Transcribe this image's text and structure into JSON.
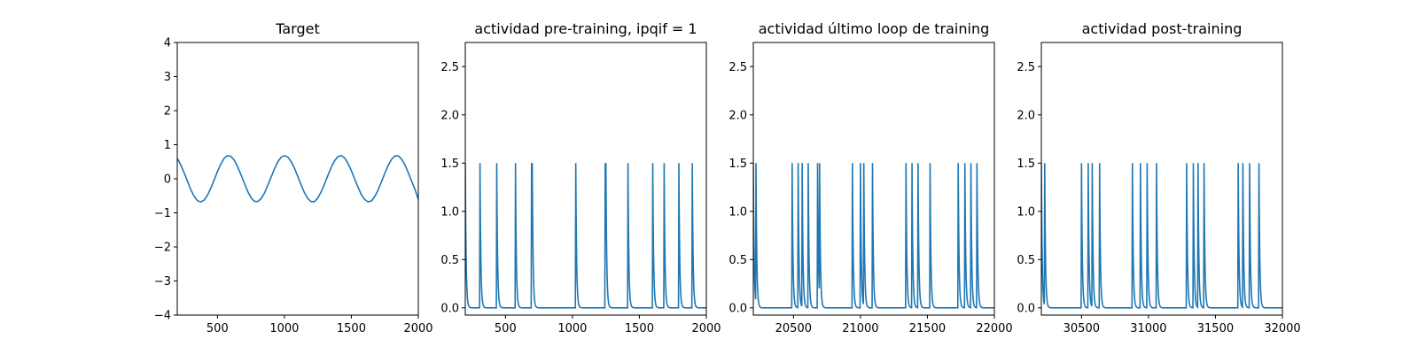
{
  "chart_data": [
    {
      "type": "line",
      "title": "Target",
      "xlabel": "",
      "ylabel": "",
      "xlim": [
        200,
        2000
      ],
      "ylim": [
        -4,
        4
      ],
      "xticks": [
        500,
        1000,
        1500,
        2000
      ],
      "xtick_labels": [
        "500",
        "1000",
        "1500",
        "2000"
      ],
      "yticks": [
        -4,
        -3,
        -2,
        -1,
        0,
        1,
        2,
        3,
        4
      ],
      "ytick_labels": [
        "−4",
        "−3",
        "−2",
        "−1",
        "0",
        "1",
        "2",
        "3",
        "4"
      ],
      "grid": false,
      "color": "#1f77b4",
      "series": [
        {
          "x": [
            200,
            225,
            250,
            275,
            300,
            325,
            350,
            375,
            400,
            425,
            450,
            475,
            500,
            525,
            550,
            575,
            600,
            625,
            650,
            675,
            700,
            725,
            750,
            775,
            800,
            825,
            850,
            875,
            900,
            925,
            950,
            975,
            1000,
            1025,
            1050,
            1075,
            1100,
            1125,
            1150,
            1175,
            1200,
            1225,
            1250,
            1275,
            1300,
            1325,
            1350,
            1375,
            1400,
            1425,
            1450,
            1475,
            1500,
            1525,
            1550,
            1575,
            1600,
            1625,
            1650,
            1675,
            1700,
            1725,
            1750,
            1775,
            1800,
            1825,
            1850,
            1875,
            1900,
            1925,
            1950,
            1975,
            2000
          ],
          "y": [
            0.6,
            0.42,
            0.19,
            -0.06,
            -0.31,
            -0.51,
            -0.64,
            -0.68,
            -0.63,
            -0.49,
            -0.28,
            -0.04,
            0.21,
            0.43,
            0.6,
            0.68,
            0.66,
            0.55,
            0.36,
            0.13,
            -0.12,
            -0.36,
            -0.55,
            -0.66,
            -0.67,
            -0.59,
            -0.43,
            -0.2,
            0.04,
            0.28,
            0.49,
            0.63,
            0.68,
            0.64,
            0.51,
            0.31,
            0.07,
            -0.18,
            -0.41,
            -0.58,
            -0.67,
            -0.67,
            -0.56,
            -0.38,
            -0.15,
            0.1,
            0.34,
            0.53,
            0.65,
            0.68,
            0.61,
            0.45,
            0.24,
            -0.01,
            -0.25,
            -0.47,
            -0.61,
            -0.68,
            -0.65,
            -0.52,
            -0.33,
            -0.09,
            0.16,
            0.39,
            0.57,
            0.67,
            0.67,
            0.58,
            0.41,
            0.18,
            -0.07,
            -0.31,
            -0.6
          ]
        }
      ]
    },
    {
      "type": "line",
      "title": "actividad pre-training, ipqif = 1",
      "xlabel": "",
      "ylabel": "",
      "xlim": [
        200,
        2000
      ],
      "ylim": [
        -0.075,
        2.75
      ],
      "xticks": [
        500,
        1000,
        1500,
        2000
      ],
      "xtick_labels": [
        "500",
        "1000",
        "1500",
        "2000"
      ],
      "yticks": [
        0,
        0.5,
        1,
        1.5,
        2,
        2.5
      ],
      "ytick_labels": [
        "0.0",
        "0.5",
        "1.0",
        "1.5",
        "2.0",
        "2.5"
      ],
      "grid": false,
      "color": "#1f77b4",
      "spike_height": 1.5,
      "spike_times": [
        200,
        310,
        435,
        575,
        695,
        700,
        1025,
        1245,
        1250,
        1415,
        1600,
        1685,
        1795,
        1895
      ]
    },
    {
      "type": "line",
      "title": "actividad último loop de training",
      "xlabel": "",
      "ylabel": "",
      "xlim": [
        20200,
        22000
      ],
      "ylim": [
        -0.075,
        2.75
      ],
      "xticks": [
        20500,
        21000,
        21500,
        22000
      ],
      "xtick_labels": [
        "20500",
        "21000",
        "21500",
        "22000"
      ],
      "yticks": [
        0,
        0.5,
        1,
        1.5,
        2,
        2.5
      ],
      "ytick_labels": [
        "0.0",
        "0.5",
        "1.0",
        "1.5",
        "2.0",
        "2.5"
      ],
      "grid": false,
      "color": "#1f77b4",
      "spike_height": 1.5,
      "spike_times": [
        20200,
        20220,
        20490,
        20535,
        20565,
        20610,
        20680,
        20695,
        20940,
        21000,
        21025,
        21090,
        21340,
        21385,
        21430,
        21520,
        21730,
        21780,
        21825,
        21870
      ]
    },
    {
      "type": "line",
      "title": "actividad post-training",
      "xlabel": "",
      "ylabel": "",
      "xlim": [
        30200,
        32000
      ],
      "ylim": [
        -0.075,
        2.75
      ],
      "xticks": [
        30500,
        31000,
        31500,
        32000
      ],
      "xtick_labels": [
        "30500",
        "31000",
        "31500",
        "32000"
      ],
      "yticks": [
        0,
        0.5,
        1,
        1.5,
        2,
        2.5
      ],
      "ytick_labels": [
        "0.0",
        "0.5",
        "1.0",
        "1.5",
        "2.0",
        "2.5"
      ],
      "grid": false,
      "color": "#1f77b4",
      "spike_height": 1.5,
      "spike_times": [
        30200,
        30225,
        30500,
        30550,
        30580,
        30635,
        30880,
        30940,
        30990,
        31060,
        31285,
        31335,
        31370,
        31415,
        31670,
        31705,
        31755,
        31825
      ]
    }
  ]
}
